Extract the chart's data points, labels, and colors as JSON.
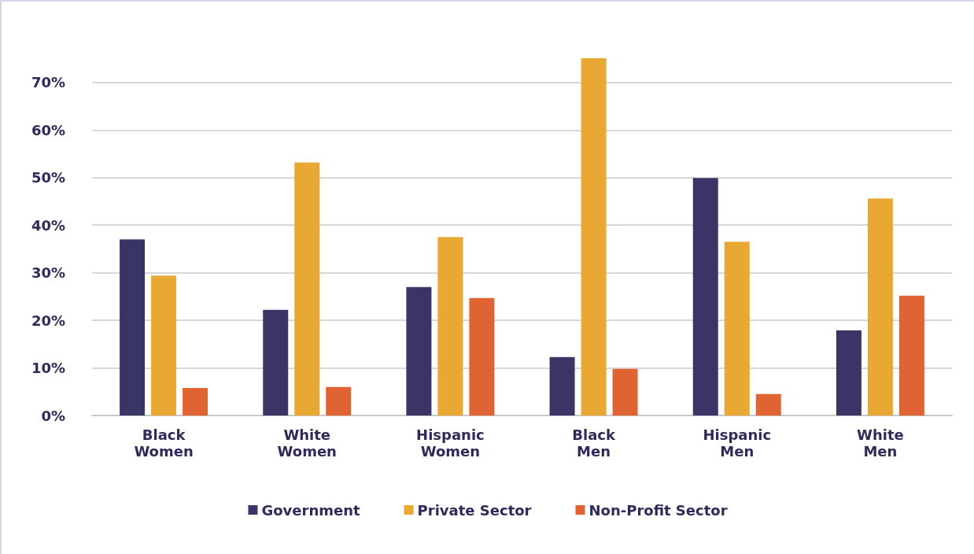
{
  "chart_data": {
    "type": "bar",
    "categories": [
      "Black\nWomen",
      "White\nWomen",
      "Hispanic\nWomen",
      "Black\nMen",
      "Hispanic\nMen",
      "White\nMen"
    ],
    "series": [
      {
        "name": "Government",
        "color": "#3b3567",
        "values": [
          37.0,
          22.2,
          27.0,
          12.3,
          49.9,
          17.9
        ]
      },
      {
        "name": "Private Sector",
        "color": "#e8a833",
        "values": [
          29.4,
          53.2,
          37.5,
          75.1,
          36.5,
          45.6
        ]
      },
      {
        "name": "Non-Profit Sector",
        "color": "#e06433",
        "values": [
          5.8,
          6.0,
          24.7,
          9.8,
          4.5,
          25.2
        ]
      }
    ],
    "yticks": [
      {
        "value": 0,
        "label": "0%"
      },
      {
        "value": 10,
        "label": "10%"
      },
      {
        "value": 20,
        "label": "20%"
      },
      {
        "value": 30,
        "label": "30%"
      },
      {
        "value": 40,
        "label": "40%"
      },
      {
        "value": 50,
        "label": "50%"
      },
      {
        "value": 60,
        "label": "60%"
      },
      {
        "value": 70,
        "label": "70%"
      }
    ],
    "ylim": [
      0,
      75.1
    ],
    "grid": "y",
    "legend": "bottom"
  }
}
